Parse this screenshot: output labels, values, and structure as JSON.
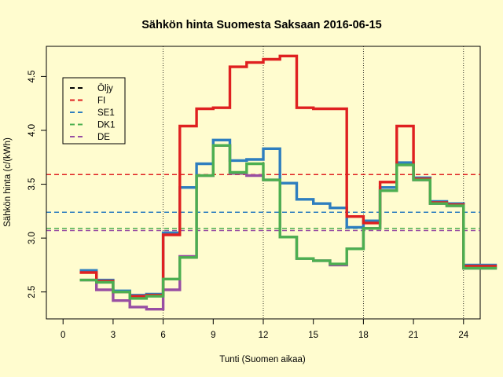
{
  "chart_data": {
    "type": "line",
    "step": true,
    "title": "Sähkön hinta Suomesta Saksaan 2016-06-15",
    "xlabel": "Tunti (Suomen aikaa)",
    "ylabel": "Sähkön hinta (c/(kWh)",
    "xlim": [
      -1,
      25
    ],
    "ylim": [
      2.25,
      4.78
    ],
    "x_ticks": [
      0,
      3,
      6,
      9,
      12,
      15,
      18,
      21,
      24
    ],
    "y_ticks": [
      2.5,
      3.0,
      3.5,
      4.0,
      4.5
    ],
    "y_tick_labels": [
      "2.5",
      "3.0",
      "3.5",
      "4.0",
      "4.5"
    ],
    "vlines": [
      6,
      12,
      18,
      24
    ],
    "legend": {
      "position": "top-left",
      "entries": [
        {
          "label": "Öljy",
          "color": "#000000"
        },
        {
          "label": "FI",
          "color": "#DF2020"
        },
        {
          "label": "SE1",
          "color": "#2E7EBF"
        },
        {
          "label": "DK1",
          "color": "#4CAF50"
        },
        {
          "label": "DE",
          "color": "#984EA3"
        }
      ]
    },
    "averages": [
      {
        "name": "FI",
        "value": 3.59,
        "color": "#DF2020"
      },
      {
        "name": "SE1",
        "value": 3.24,
        "color": "#2E7EBF"
      },
      {
        "name": "DK1",
        "value": 3.09,
        "color": "#4CAF50"
      },
      {
        "name": "DE",
        "value": 3.07,
        "color": "#984EA3"
      }
    ],
    "series": [
      {
        "name": "DE",
        "color": "#984EA3",
        "x": [
          1,
          2,
          3,
          4,
          5,
          6,
          7,
          8,
          9,
          10,
          11,
          12,
          13,
          14,
          15,
          16,
          17,
          18,
          19,
          20,
          21,
          22,
          23,
          24,
          25
        ],
        "values": [
          2.61,
          2.52,
          2.42,
          2.36,
          2.34,
          2.52,
          2.83,
          3.58,
          3.86,
          3.6,
          3.58,
          3.54,
          3.01,
          2.81,
          2.79,
          2.75,
          2.9,
          3.09,
          3.44,
          3.68,
          3.54,
          3.32,
          3.3,
          2.72,
          2.72
        ]
      },
      {
        "name": "SE1",
        "color": "#2E7EBF",
        "x": [
          1,
          2,
          3,
          4,
          5,
          6,
          7,
          8,
          9,
          10,
          11,
          12,
          13,
          14,
          15,
          16,
          17,
          18,
          19,
          20,
          21,
          22,
          23,
          24,
          25
        ],
        "values": [
          2.7,
          2.61,
          2.51,
          2.47,
          2.48,
          3.05,
          3.47,
          3.69,
          3.91,
          3.72,
          3.73,
          3.83,
          3.51,
          3.36,
          3.32,
          3.28,
          3.1,
          3.16,
          3.47,
          3.7,
          3.56,
          3.34,
          3.32,
          2.75,
          2.75
        ]
      },
      {
        "name": "FI",
        "color": "#DF2020",
        "x": [
          1,
          2,
          3,
          4,
          5,
          6,
          7,
          8,
          9,
          10,
          11,
          12,
          13,
          14,
          15,
          16,
          17,
          18,
          19,
          20,
          21,
          22,
          23,
          24,
          25
        ],
        "values": [
          2.68,
          2.6,
          2.5,
          2.46,
          2.47,
          3.03,
          4.04,
          4.2,
          4.21,
          4.59,
          4.63,
          4.66,
          4.69,
          4.21,
          4.2,
          4.2,
          3.2,
          3.14,
          3.52,
          4.04,
          3.55,
          3.33,
          3.31,
          2.74,
          2.74
        ]
      },
      {
        "name": "DK1",
        "color": "#4CAF50",
        "x": [
          1,
          2,
          3,
          4,
          5,
          6,
          7,
          8,
          9,
          10,
          11,
          12,
          13,
          14,
          15,
          16,
          17,
          18,
          19,
          20,
          21,
          22,
          23,
          24,
          25
        ],
        "values": [
          2.61,
          2.59,
          2.5,
          2.44,
          2.46,
          2.62,
          2.82,
          3.58,
          3.86,
          3.61,
          3.69,
          3.54,
          3.01,
          2.81,
          2.79,
          2.76,
          2.9,
          3.09,
          3.44,
          3.68,
          3.54,
          3.32,
          3.3,
          2.72,
          2.72
        ]
      }
    ]
  }
}
